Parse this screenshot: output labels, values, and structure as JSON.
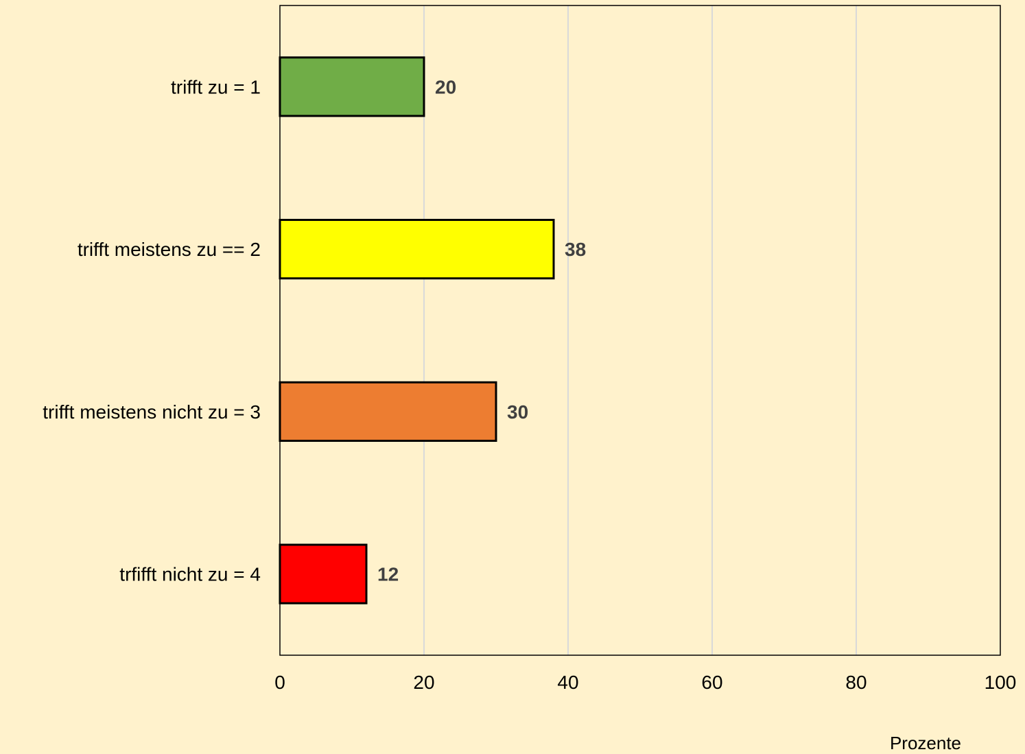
{
  "chart_data": {
    "type": "bar",
    "orientation": "horizontal",
    "categories": [
      "trifft zu = 1",
      "trifft meistens zu == 2",
      "trifft meistens nicht zu = 3",
      "trfifft nicht zu = 4"
    ],
    "values": [
      20,
      38,
      30,
      12
    ],
    "data_labels": [
      "20",
      "38",
      "30",
      "12"
    ],
    "colors": [
      "#70AD47",
      "#FFFF00",
      "#ED7D31",
      "#FF0000"
    ],
    "xlim": [
      0,
      100
    ],
    "x_ticks": [
      0,
      20,
      40,
      60,
      80,
      100
    ],
    "x_tick_labels": [
      "0",
      "20",
      "40",
      "60",
      "80",
      "100"
    ],
    "xlabel": "Prozente",
    "ylabel": "",
    "title": "",
    "grid": "vertical",
    "legend": "none",
    "background": "#FFF2CC",
    "gridline_color": "#D9D9D9"
  }
}
